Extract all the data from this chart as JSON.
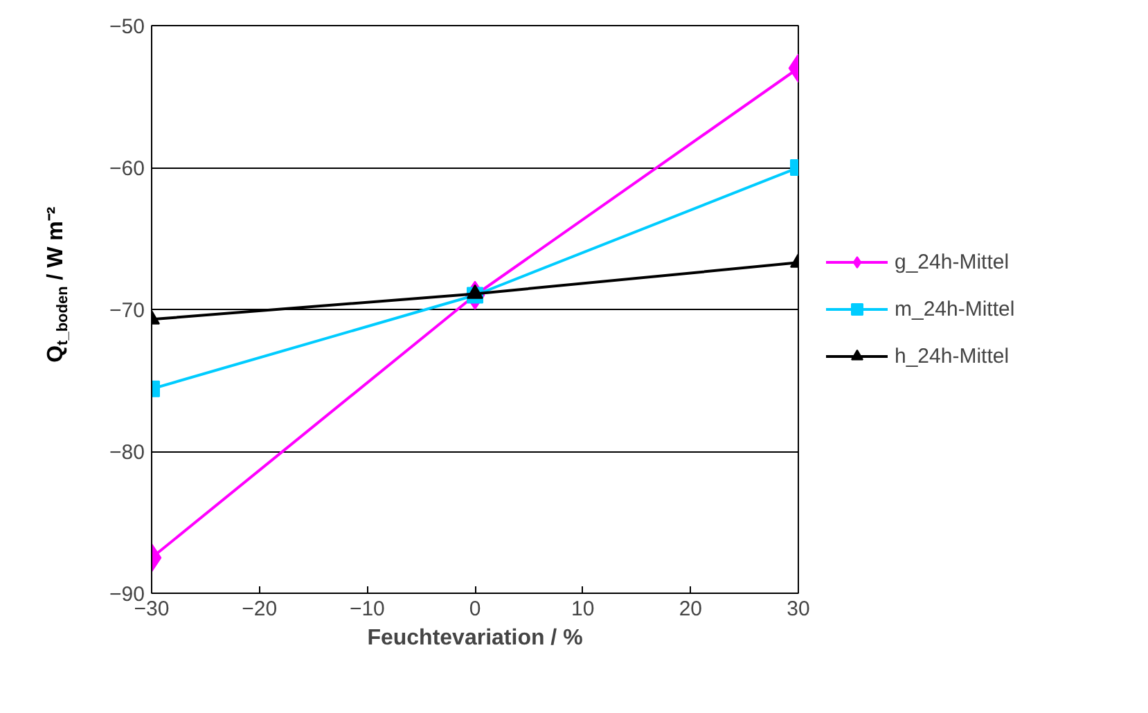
{
  "chart_data": {
    "type": "line",
    "xlabel": "Feuchtevariation / %",
    "ylabel": "Q$_{t_boden}$ / W m⁻²",
    "x": [
      -30,
      0,
      30
    ],
    "series": [
      {
        "name": "g_24h-Mittel",
        "color": "#ff00ff",
        "marker": "diamond",
        "values": [
          -87.5,
          -69.0,
          -53.0
        ]
      },
      {
        "name": "m_24h-Mittel",
        "color": "#00ccff",
        "marker": "square",
        "values": [
          -75.6,
          -69.0,
          -60.0
        ]
      },
      {
        "name": "h_24h-Mittel",
        "color": "#000000",
        "marker": "triangle",
        "values": [
          -70.7,
          -68.9,
          -66.7
        ]
      }
    ],
    "xlim": [
      -30,
      30
    ],
    "xticks": [
      -30,
      -20,
      -10,
      0,
      10,
      20,
      30
    ],
    "ylim": [
      -90,
      -50
    ],
    "yticks": [
      -90,
      -80,
      -70,
      -60,
      -50
    ],
    "grid": "y",
    "legend": "right",
    "line_style": "solid"
  }
}
